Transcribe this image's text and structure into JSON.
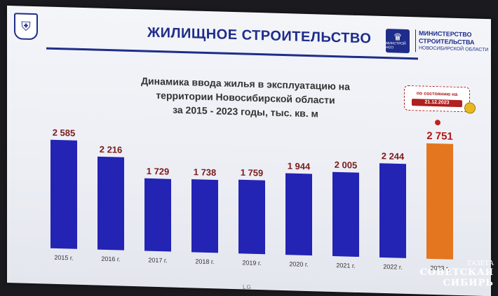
{
  "header": {
    "title": "ЖИЛИЩНОЕ СТРОИТЕЛЬСТВО",
    "ministry_logo_text": "МИНСТРОЙ НСО",
    "ministry_line1": "МИНИСТЕРСТВО",
    "ministry_line2": "СТРОИТЕЛЬСТВА",
    "ministry_line3": "НОВОСИБИРСКОЙ ОБЛАСТИ"
  },
  "badge": {
    "line1": "по состоянию на",
    "line2": "21.12.2023"
  },
  "watermark": {
    "line1": "ГАЗЕТА",
    "line2": "СОВЕТСКАЯ",
    "line3": "СИБИРЬ"
  },
  "tv_brand": "LG",
  "colors": {
    "bar": "#2323b4",
    "highlight": "#e3761f",
    "value_label": "#7a1a1a",
    "title": "#1e2d8a"
  },
  "chart_data": {
    "type": "bar",
    "title_lines": [
      "Динамика ввода жилья в эксплуатацию на",
      "территории Новосибирской области",
      "за 2015 - 2023 годы, тыс. кв. м"
    ],
    "categories": [
      "2015 г.",
      "2016 г.",
      "2017 г.",
      "2018 г.",
      "2019 г.",
      "2020 г.",
      "2021 г.",
      "2022 г.",
      "2023 г."
    ],
    "values": [
      2585,
      2216,
      1729,
      1738,
      1759,
      1944,
      2005,
      2244,
      2751
    ],
    "value_labels": [
      "2 585",
      "2 216",
      "1 729",
      "1 738",
      "1 759",
      "1 944",
      "2 005",
      "2 244",
      "2 751"
    ],
    "highlight_index": 8,
    "ylim": [
      0,
      2751
    ],
    "grid": false,
    "legend": "none"
  }
}
